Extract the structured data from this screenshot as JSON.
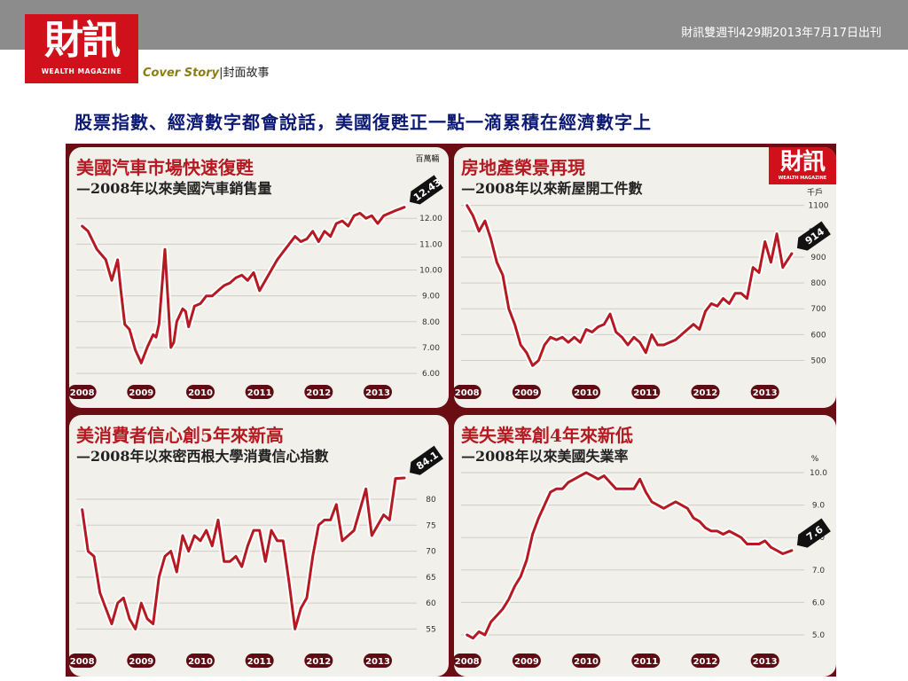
{
  "header": {
    "issue": "財訊雙週刊429期2013年7月17日出刊",
    "logo_cn": "財訊",
    "logo_en": "WEALTH MAGAZINE",
    "section_en": "Cover  Story",
    "section_sep": "|",
    "section_cn": "封面故事"
  },
  "headline": "股票指數、經濟數字都會說話，美國復甦正一點一滴累積在經濟數字上",
  "badge": {
    "cn": "財訊",
    "en": "WEALTH MAGAZINE"
  },
  "colors": {
    "line": "#b51a22",
    "board": "#6b0e14",
    "panel": "#f1f0ea",
    "header": "#8c8c8c",
    "logo": "#d0111b",
    "headline": "#0d1a73"
  },
  "chart_data": [
    {
      "type": "line",
      "title": "美國汽車市場快速復甦",
      "subtitle": "—2008年以來美國汽車銷售量",
      "unit": "百萬輛",
      "ylim": [
        5.9,
        12.9
      ],
      "yticks": [
        "12.00",
        "11.00",
        "10.00",
        "9.00",
        "8.00",
        "7.00",
        "6.00"
      ],
      "ytick_values": [
        12,
        11,
        10,
        9,
        8,
        7,
        6
      ],
      "xticks": [
        "2008",
        "2009",
        "2010",
        "2011",
        "2012",
        "2013"
      ],
      "xlim": [
        2007.9,
        2013.6
      ],
      "latest_label": "12.43",
      "series": [
        {
          "x": [
            2008.0,
            2008.1,
            2008.25,
            2008.4,
            2008.5,
            2008.6,
            2008.65,
            2008.72,
            2008.8,
            2008.9,
            2009.0,
            2009.1,
            2009.2,
            2009.25,
            2009.3,
            2009.4,
            2009.5,
            2009.55,
            2009.6,
            2009.7,
            2009.75,
            2009.8,
            2009.9,
            2010.0,
            2010.1,
            2010.2,
            2010.3,
            2010.4,
            2010.5,
            2010.6,
            2010.7,
            2010.8,
            2010.9,
            2011.0,
            2011.1,
            2011.2,
            2011.3,
            2011.4,
            2011.5,
            2011.6,
            2011.7,
            2011.8,
            2011.9,
            2012.0,
            2012.1,
            2012.2,
            2012.3,
            2012.4,
            2012.5,
            2012.6,
            2012.7,
            2012.8,
            2012.9,
            2013.0,
            2013.1,
            2013.2,
            2013.3,
            2013.45
          ],
          "values": [
            11.7,
            11.5,
            10.8,
            10.4,
            9.6,
            10.4,
            9.3,
            7.9,
            7.7,
            6.9,
            6.4,
            7.0,
            7.5,
            7.4,
            7.9,
            10.8,
            7.0,
            7.2,
            8.0,
            8.5,
            8.4,
            7.8,
            8.6,
            8.7,
            9.0,
            9.0,
            9.2,
            9.4,
            9.5,
            9.7,
            9.8,
            9.6,
            9.9,
            9.2,
            9.6,
            10.0,
            10.4,
            10.7,
            11.0,
            11.3,
            11.1,
            11.2,
            11.5,
            11.1,
            11.5,
            11.3,
            11.8,
            11.9,
            11.7,
            12.1,
            12.2,
            12.0,
            12.1,
            11.8,
            12.1,
            12.2,
            12.3,
            12.43
          ]
        }
      ]
    },
    {
      "type": "line",
      "title": "房地產榮景再現",
      "subtitle": "—2008年以來新屋開工件數",
      "unit": "千戶",
      "ylim": [
        440,
        1140
      ],
      "yticks": [
        "1100",
        "1000",
        "900",
        "800",
        "700",
        "600",
        "500"
      ],
      "ytick_values": [
        1100,
        1000,
        900,
        800,
        700,
        600,
        500
      ],
      "xticks": [
        "2008",
        "2009",
        "2010",
        "2011",
        "2012",
        "2013"
      ],
      "xlim": [
        2007.9,
        2013.6
      ],
      "latest_label": "914",
      "series": [
        {
          "x": [
            2008.0,
            2008.1,
            2008.2,
            2008.3,
            2008.4,
            2008.5,
            2008.6,
            2008.7,
            2008.8,
            2008.9,
            2009.0,
            2009.1,
            2009.2,
            2009.3,
            2009.4,
            2009.5,
            2009.6,
            2009.7,
            2009.8,
            2009.9,
            2010.0,
            2010.1,
            2010.2,
            2010.3,
            2010.4,
            2010.5,
            2010.6,
            2010.7,
            2010.8,
            2010.9,
            2011.0,
            2011.1,
            2011.2,
            2011.3,
            2011.4,
            2011.5,
            2011.6,
            2011.7,
            2011.8,
            2011.9,
            2012.0,
            2012.1,
            2012.2,
            2012.3,
            2012.4,
            2012.5,
            2012.6,
            2012.7,
            2012.8,
            2012.9,
            2013.0,
            2013.1,
            2013.2,
            2013.3,
            2013.45
          ],
          "values": [
            1100,
            1060,
            1000,
            1040,
            970,
            880,
            830,
            700,
            640,
            560,
            530,
            480,
            500,
            560,
            590,
            580,
            590,
            570,
            590,
            570,
            620,
            610,
            630,
            640,
            680,
            610,
            590,
            560,
            590,
            570,
            530,
            600,
            560,
            560,
            570,
            580,
            600,
            620,
            640,
            620,
            690,
            720,
            710,
            740,
            720,
            760,
            760,
            740,
            860,
            840,
            960,
            880,
            990,
            860,
            914
          ]
        }
      ]
    },
    {
      "type": "line",
      "title": "美消費者信心創5年來新高",
      "subtitle": "—2008年以來密西根大學消費信心指數",
      "unit": "",
      "ylim": [
        52,
        87
      ],
      "yticks": [
        "80",
        "75",
        "70",
        "65",
        "60",
        "55"
      ],
      "ytick_values": [
        80,
        75,
        70,
        65,
        60,
        55
      ],
      "xticks": [
        "2008",
        "2009",
        "2010",
        "2011",
        "2012",
        "2013"
      ],
      "xlim": [
        2007.9,
        2013.6
      ],
      "latest_label": "84.1",
      "series": [
        {
          "x": [
            2008.0,
            2008.1,
            2008.2,
            2008.3,
            2008.4,
            2008.5,
            2008.6,
            2008.7,
            2008.8,
            2008.9,
            2009.0,
            2009.1,
            2009.2,
            2009.3,
            2009.4,
            2009.5,
            2009.6,
            2009.7,
            2009.8,
            2009.9,
            2010.0,
            2010.1,
            2010.2,
            2010.3,
            2010.4,
            2010.5,
            2010.6,
            2010.7,
            2010.8,
            2010.9,
            2011.0,
            2011.1,
            2011.2,
            2011.3,
            2011.4,
            2011.5,
            2011.6,
            2011.7,
            2011.8,
            2011.9,
            2012.0,
            2012.1,
            2012.2,
            2012.3,
            2012.4,
            2012.5,
            2012.6,
            2012.7,
            2012.8,
            2012.9,
            2013.0,
            2013.1,
            2013.2,
            2013.3,
            2013.45
          ],
          "values": [
            78,
            70,
            69,
            62,
            59,
            56,
            60,
            61,
            57,
            55,
            60,
            57,
            56,
            65,
            69,
            70,
            66,
            73,
            70,
            73,
            72,
            74,
            71,
            76,
            68,
            68,
            69,
            67,
            71,
            74,
            74,
            68,
            74,
            72,
            72,
            64,
            55,
            59,
            61,
            69,
            75,
            76,
            76,
            79,
            72,
            73,
            74,
            78,
            82,
            73,
            75,
            77,
            76,
            84,
            84.1
          ]
        }
      ]
    },
    {
      "type": "line",
      "title": "美失業率創4年來新低",
      "subtitle": "—2008年以來美國失業率",
      "unit": "%",
      "ylim": [
        4.7,
        10.3
      ],
      "yticks": [
        "10.0",
        "9.0",
        "8.0",
        "7.0",
        "6.0",
        "5.0"
      ],
      "ytick_values": [
        10,
        9,
        8,
        7,
        6,
        5
      ],
      "xticks": [
        "2008",
        "2009",
        "2010",
        "2011",
        "2012",
        "2013"
      ],
      "xlim": [
        2007.9,
        2013.6
      ],
      "latest_label": "7.6",
      "series": [
        {
          "x": [
            2008.0,
            2008.1,
            2008.2,
            2008.3,
            2008.4,
            2008.5,
            2008.6,
            2008.7,
            2008.8,
            2008.9,
            2009.0,
            2009.1,
            2009.2,
            2009.3,
            2009.4,
            2009.5,
            2009.6,
            2009.7,
            2009.8,
            2009.9,
            2010.0,
            2010.1,
            2010.2,
            2010.3,
            2010.4,
            2010.5,
            2010.6,
            2010.7,
            2010.8,
            2010.9,
            2011.0,
            2011.1,
            2011.2,
            2011.3,
            2011.4,
            2011.5,
            2011.6,
            2011.7,
            2011.8,
            2011.9,
            2012.0,
            2012.1,
            2012.2,
            2012.3,
            2012.4,
            2012.5,
            2012.6,
            2012.7,
            2012.8,
            2012.9,
            2013.0,
            2013.1,
            2013.2,
            2013.3,
            2013.45
          ],
          "values": [
            5.0,
            4.9,
            5.1,
            5.0,
            5.4,
            5.6,
            5.8,
            6.1,
            6.5,
            6.8,
            7.3,
            8.1,
            8.6,
            9.0,
            9.4,
            9.5,
            9.5,
            9.7,
            9.8,
            9.9,
            10.0,
            9.9,
            9.8,
            9.9,
            9.7,
            9.5,
            9.5,
            9.5,
            9.5,
            9.8,
            9.4,
            9.1,
            9.0,
            8.9,
            9.0,
            9.1,
            9.0,
            8.9,
            8.6,
            8.5,
            8.3,
            8.2,
            8.2,
            8.1,
            8.2,
            8.1,
            8.0,
            7.8,
            7.8,
            7.8,
            7.9,
            7.7,
            7.6,
            7.5,
            7.6
          ]
        }
      ]
    }
  ]
}
